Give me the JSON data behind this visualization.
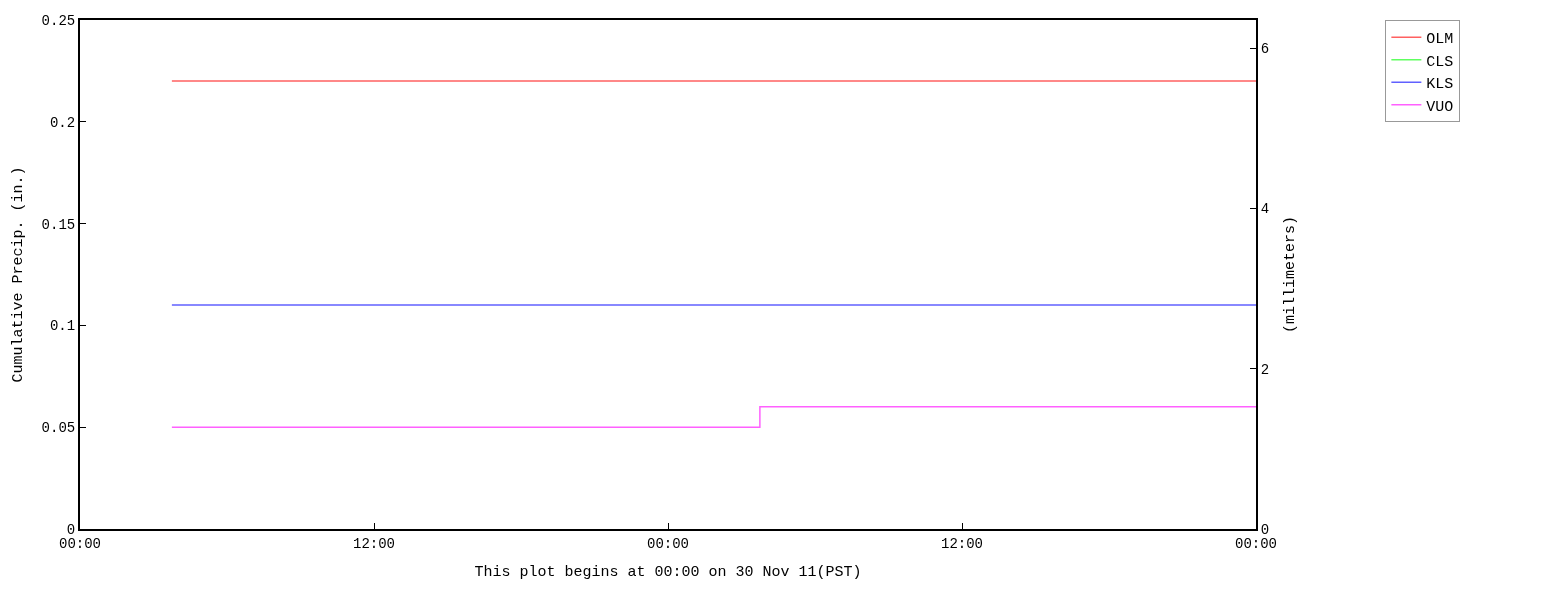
{
  "chart_data": {
    "type": "step",
    "xlabel": "This plot begins at 00:00 on 30 Nov 11(PST)",
    "ylabel": "Cumulative Precip. (in.)",
    "y2label": "(millimeters)",
    "xlim": [
      "--11-30T00:00",
      "--12-02T00:00"
    ],
    "xticks": [
      {
        "value": "--11-30T00:00",
        "label": "00:00"
      },
      {
        "value": "--11-30T12:00",
        "label": "12:00"
      },
      {
        "value": "--12-01T00:00",
        "label": "00:00"
      },
      {
        "value": "--12-01T12:00",
        "label": "12:00"
      },
      {
        "value": "--12-02T00:00",
        "label": "00:00"
      }
    ],
    "ylim": [
      0,
      0.25
    ],
    "yticks": [
      0,
      0.05,
      0.1,
      0.15,
      0.2,
      0.25
    ],
    "y2lim": [
      0,
      6.35
    ],
    "y2ticks": [
      0,
      2,
      4,
      6
    ],
    "legend": "top right",
    "line_style": "solid",
    "marker": "none",
    "series": [
      {
        "name": "OLM",
        "color": "#ff6060",
        "x": [
          "--11-30T03:45",
          "--12-02T00:00"
        ],
        "values": [
          0.22,
          0.22
        ]
      },
      {
        "name": "CLS",
        "color": "#60ff60"
      },
      {
        "name": "KLS",
        "color": "#6060ff",
        "x": [
          "--11-30T03:45",
          "--12-02T00:00"
        ],
        "values": [
          0.11,
          0.11
        ]
      },
      {
        "name": "VUO",
        "color": "#ff60ff",
        "x": [
          "--11-30T03:45",
          "--12-01T03:45",
          "--12-02T00:00"
        ],
        "values": [
          0.05,
          0.06,
          0.06
        ]
      }
    ]
  }
}
